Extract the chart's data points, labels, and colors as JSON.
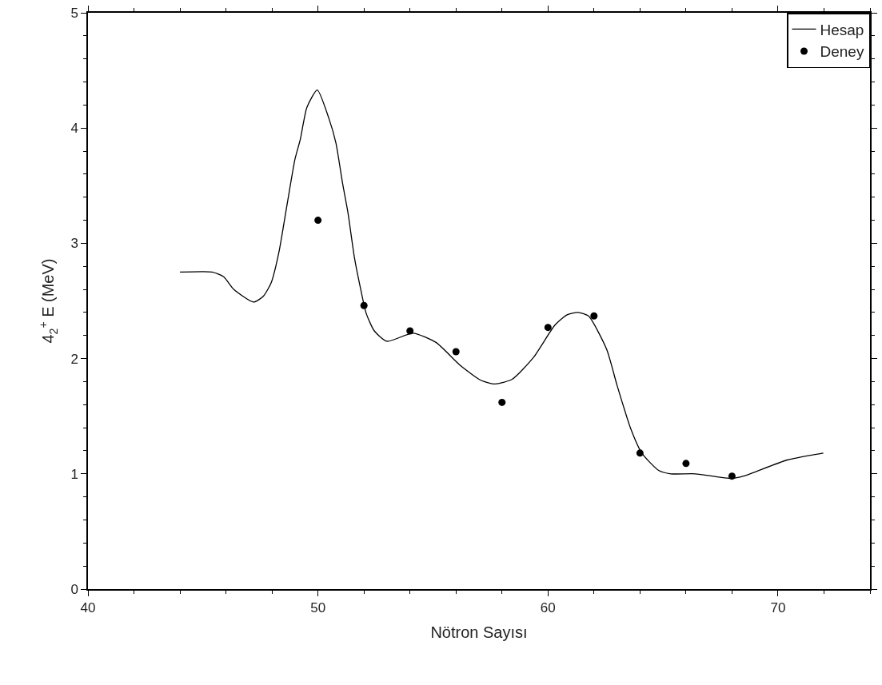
{
  "chart_data": {
    "type": "line",
    "xlabel": "Nötron Sayısı",
    "ylabel": "4$_{2}$$^{+}$ E (MeV)",
    "xlim": [
      40,
      74
    ],
    "xticks": [
      40,
      50,
      60,
      70
    ],
    "ylim": [
      0,
      5
    ],
    "yticks": [
      0,
      1,
      2,
      3,
      4,
      5
    ],
    "legend": "top right",
    "series": [
      {
        "name": "Hesap",
        "color": "#000000",
        "marker": "none",
        "line_style": "solid",
        "x": [
          44,
          45.4,
          45.9,
          46.34,
          47.2,
          47.62,
          47.97,
          48.3,
          48.66,
          49.0,
          49.23,
          49.52,
          49.97,
          50.48,
          50.78,
          51.07,
          51.3,
          51.59,
          51.87,
          52.1,
          52.45,
          53.0,
          54.13,
          55.13,
          56.19,
          57.1,
          57.7,
          58.44,
          59.37,
          60.3,
          60.83,
          61.3,
          61.76,
          62.55,
          63.0,
          63.6,
          64.08,
          64.81,
          65.34,
          66.4,
          67.99,
          68.5,
          70.4,
          71.97
        ],
        "values": [
          2.75,
          2.75,
          2.71,
          2.6,
          2.49,
          2.54,
          2.66,
          2.92,
          3.34,
          3.73,
          3.9,
          4.18,
          4.33,
          4.08,
          3.87,
          3.52,
          3.27,
          2.87,
          2.59,
          2.39,
          2.24,
          2.15,
          2.22,
          2.14,
          1.94,
          1.81,
          1.78,
          1.82,
          2.01,
          2.29,
          2.38,
          2.4,
          2.37,
          2.08,
          1.77,
          1.39,
          1.18,
          1.03,
          1.0,
          1.0,
          0.96,
          0.98,
          1.12,
          1.18
        ]
      },
      {
        "name": "Deney",
        "type": "scatter",
        "color": "#000000",
        "marker": "circle",
        "x": [
          50,
          52,
          54,
          56,
          58,
          60,
          62,
          64,
          66,
          68
        ],
        "values": [
          3.2,
          2.46,
          2.24,
          2.06,
          1.62,
          2.27,
          2.37,
          1.18,
          1.09,
          0.98
        ]
      }
    ]
  }
}
